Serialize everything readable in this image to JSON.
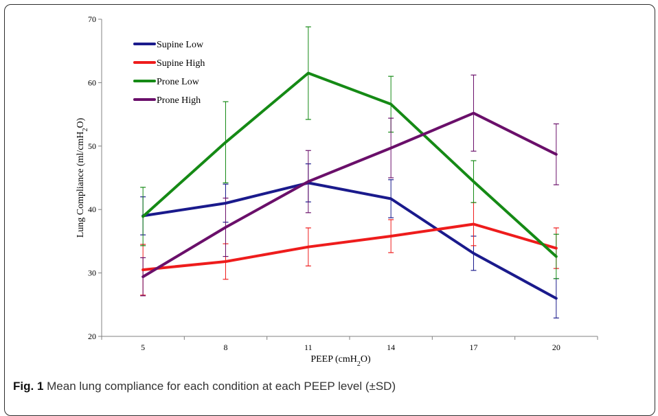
{
  "chart_data": {
    "type": "line",
    "title": "",
    "xlabel": "PEEP (cmH2O)",
    "xlabel_parts": {
      "main": "PEEP (cmH",
      "sub": "2",
      "tail": "O)"
    },
    "ylabel": "Lung Compliance (ml/cmH2O)",
    "ylabel_parts": {
      "main": "Lung Compliance (ml/cmH",
      "sub": "2",
      "tail": "O)"
    },
    "categories": [
      "5",
      "8",
      "11",
      "14",
      "17",
      "20"
    ],
    "ylim": [
      20,
      70
    ],
    "yticks": [
      "20",
      "30",
      "40",
      "50",
      "60",
      "70"
    ],
    "grid": false,
    "legend_position": "top-left",
    "series": [
      {
        "name": "Supine Low",
        "color": "#1a1a8c",
        "values": [
          39.0,
          41.0,
          44.2,
          41.7,
          33.1,
          26.0
        ],
        "error": [
          3.0,
          3.0,
          3.0,
          3.0,
          2.7,
          3.1
        ]
      },
      {
        "name": "Supine High",
        "color": "#ee1c1c",
        "values": [
          30.5,
          31.8,
          34.1,
          35.8,
          37.7,
          33.9
        ],
        "error": [
          4.0,
          2.8,
          3.0,
          2.6,
          3.4,
          3.2
        ]
      },
      {
        "name": "Prone Low",
        "color": "#158a15",
        "values": [
          38.9,
          50.6,
          61.5,
          56.6,
          44.4,
          32.6
        ],
        "error": [
          4.6,
          6.4,
          7.3,
          4.4,
          3.3,
          3.5
        ]
      },
      {
        "name": "Prone High",
        "color": "#6a0f6a",
        "values": [
          29.4,
          37.2,
          44.4,
          49.7,
          55.2,
          48.7
        ],
        "error": [
          3.0,
          4.6,
          4.9,
          4.7,
          6.0,
          4.8
        ]
      }
    ]
  },
  "caption": {
    "label": "Fig. 1",
    "text": "Mean lung compliance for each condition at each PEEP level (±SD)"
  }
}
